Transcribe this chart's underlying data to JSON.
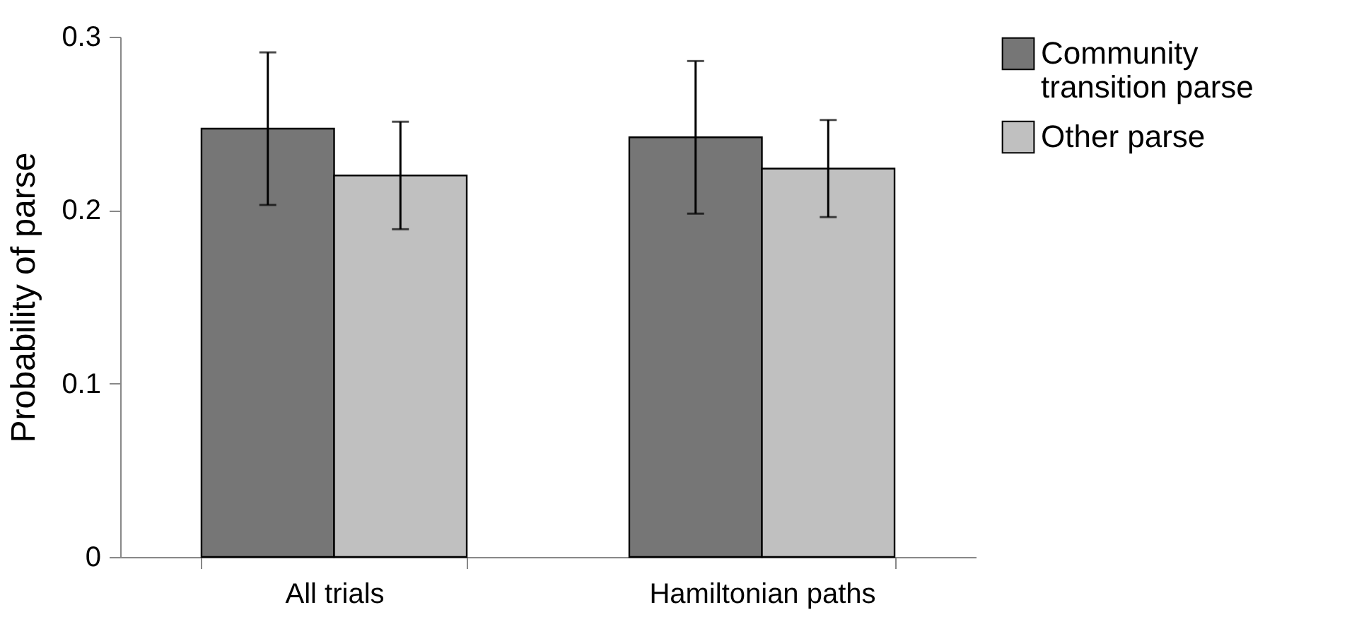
{
  "chart_data": {
    "type": "bar",
    "ylabel": "Probability of parse",
    "categories": [
      "All trials",
      "Hamiltonian paths"
    ],
    "series": [
      {
        "name": "Community transition parse",
        "color": "#767676",
        "values": [
          0.247,
          0.242
        ],
        "errors": [
          [
            0.203,
            0.291
          ],
          [
            0.198,
            0.286
          ]
        ]
      },
      {
        "name": "Other parse",
        "color": "#c0c0c0",
        "values": [
          0.22,
          0.224
        ],
        "errors": [
          [
            0.189,
            0.251
          ],
          [
            0.196,
            0.252
          ]
        ]
      }
    ],
    "ylim": [
      0,
      0.3
    ],
    "yticks": [
      0,
      0.1,
      0.2,
      0.3
    ],
    "grid": false,
    "legend": "top right"
  }
}
